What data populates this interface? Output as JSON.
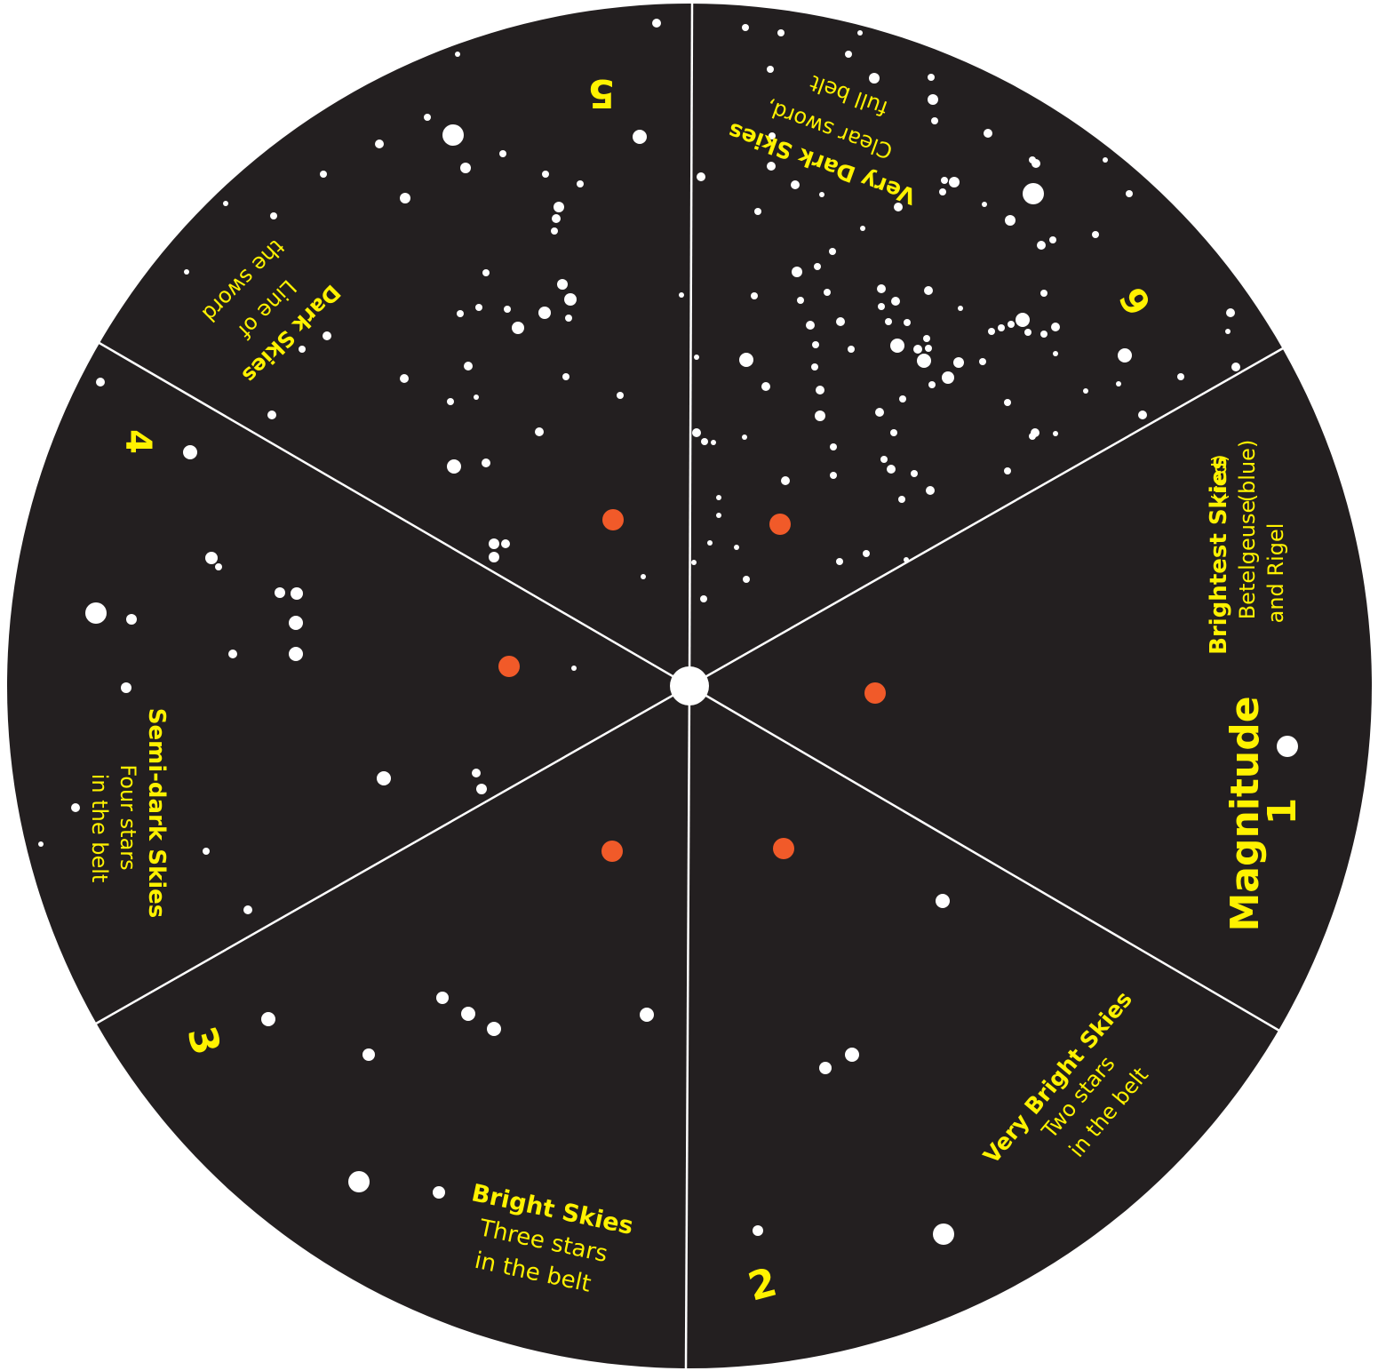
{
  "colors": {
    "background": "#231f20",
    "divider": "#ffffff",
    "label": "#fff200",
    "star": "#ffffff",
    "giant_star": "#f15a29"
  },
  "title": {
    "word": "Magnitude"
  },
  "segments": [
    {
      "id": "brightest",
      "number": "1",
      "heading": "Brightest  Skies",
      "detail_a": "(red)",
      "line2": "Betelgeuse",
      "line2b": "(blue)",
      "line3": "and Rigel"
    },
    {
      "id": "very-bright",
      "number": "2",
      "heading": "Very Bright Skies",
      "line2": "Two stars",
      "line3": "in the belt"
    },
    {
      "id": "bright",
      "number": "3",
      "heading": "Bright Skies",
      "line2": "Three stars",
      "line3": "in the belt"
    },
    {
      "id": "semi-dark",
      "number": "4",
      "heading": "Semi-dark Skies",
      "line2": "Four stars",
      "line3": "in the belt"
    },
    {
      "id": "dark",
      "number": "5",
      "heading": "Dark Skies",
      "line2": "Line of",
      "line3": "the sword"
    },
    {
      "id": "very-dark",
      "number": "6",
      "heading": "Very Dark Skies",
      "line2": "Clear sword,",
      "line3": "full belt"
    }
  ]
}
